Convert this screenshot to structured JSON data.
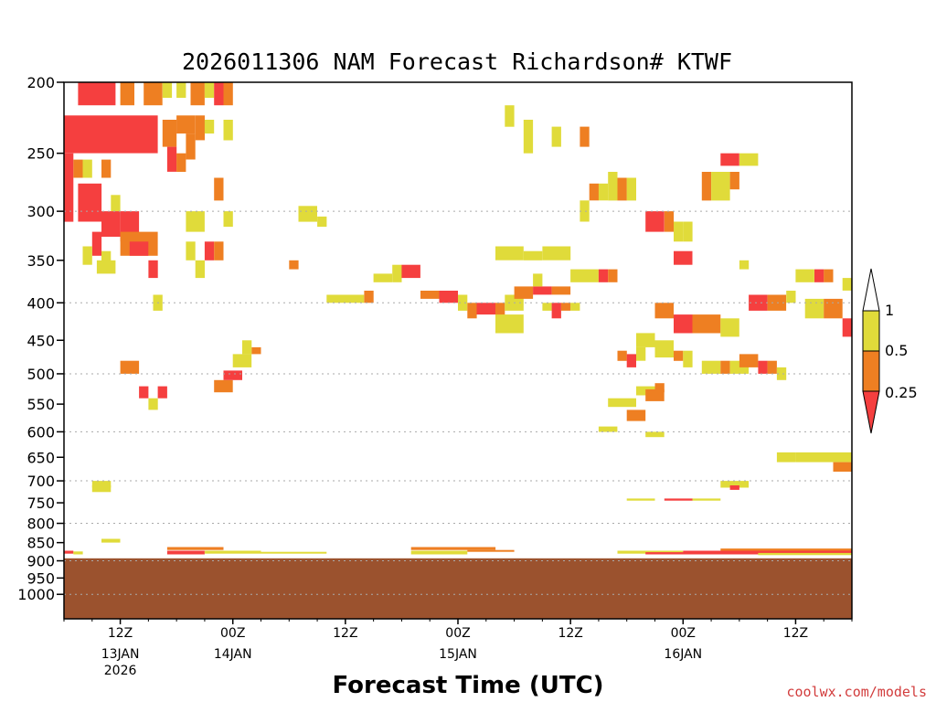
{
  "chart_data": {
    "type": "heatmap",
    "title": "2026011306 NAM Forecast Richardson# KTWF",
    "xlabel": "Forecast Time (UTC)",
    "ylabel": "",
    "credit": "coolwx.com/models",
    "y_scale": "log-pressure",
    "y_range_hpa": [
      200,
      1080
    ],
    "y_ticks": [
      "200",
      "250",
      "300",
      "350",
      "400",
      "450",
      "500",
      "550",
      "600",
      "650",
      "700",
      "750",
      "800",
      "850",
      "900",
      "950",
      "1000"
    ],
    "y_grid_levels": [
      300,
      400,
      500,
      600,
      700,
      800,
      900,
      1000
    ],
    "x_ticks": [
      {
        "hour": 6,
        "label": "12Z",
        "date": "13JAN",
        "year": "2026"
      },
      {
        "hour": 18,
        "label": "00Z",
        "date": "14JAN",
        "year": ""
      },
      {
        "hour": 30,
        "label": "12Z",
        "date": "",
        "year": ""
      },
      {
        "hour": 42,
        "label": "00Z",
        "date": "15JAN",
        "year": ""
      },
      {
        "hour": 54,
        "label": "12Z",
        "date": "",
        "year": ""
      },
      {
        "hour": 66,
        "label": "00Z",
        "date": "16JAN",
        "year": ""
      },
      {
        "hour": 78,
        "label": "12Z",
        "date": "",
        "year": ""
      }
    ],
    "x_range_hours": [
      0,
      84
    ],
    "underground_pressure_hpa": 893,
    "colors": {
      "ri_lt_025": "#f53f3f",
      "ri_025_05": "#ee7f22",
      "ri_05_1": "#e0db3a",
      "ground": "#9b522e"
    },
    "legend": {
      "labels": [
        "1",
        "0.5",
        "0.25"
      ]
    },
    "cells": [
      [
        1.5,
        5.5,
        200,
        215,
        "r"
      ],
      [
        6,
        7.5,
        200,
        215,
        "o"
      ],
      [
        8.5,
        10.5,
        200,
        215,
        "o"
      ],
      [
        10.5,
        11.5,
        200,
        210,
        "y"
      ],
      [
        12,
        13,
        200,
        210,
        "y"
      ],
      [
        13.5,
        15,
        200,
        215,
        "o"
      ],
      [
        15,
        16,
        200,
        210,
        "y"
      ],
      [
        16,
        17,
        200,
        215,
        "r"
      ],
      [
        17,
        18,
        200,
        215,
        "o"
      ],
      [
        0,
        10,
        222,
        250,
        "r"
      ],
      [
        10.5,
        12,
        225,
        245,
        "o"
      ],
      [
        12,
        14,
        222,
        235,
        "o"
      ],
      [
        14,
        15,
        222,
        240,
        "o"
      ],
      [
        13,
        14,
        235,
        255,
        "o"
      ],
      [
        15,
        16,
        225,
        235,
        "y"
      ],
      [
        17,
        18,
        225,
        240,
        "y"
      ],
      [
        11,
        12,
        245,
        265,
        "r"
      ],
      [
        12,
        13,
        250,
        265,
        "o"
      ],
      [
        0,
        1,
        250,
        310,
        "r"
      ],
      [
        1,
        2,
        255,
        270,
        "o"
      ],
      [
        2,
        3,
        255,
        270,
        "y"
      ],
      [
        1.5,
        4,
        275,
        310,
        "r"
      ],
      [
        4,
        5,
        255,
        270,
        "o"
      ],
      [
        5,
        6,
        285,
        300,
        "y"
      ],
      [
        6,
        8,
        300,
        330,
        "r"
      ],
      [
        4,
        6,
        300,
        325,
        "r"
      ],
      [
        3,
        4,
        320,
        345,
        "r"
      ],
      [
        6,
        10,
        320,
        345,
        "o"
      ],
      [
        7,
        9,
        330,
        345,
        "r"
      ],
      [
        2,
        3,
        335,
        355,
        "y"
      ],
      [
        4,
        5,
        340,
        355,
        "y"
      ],
      [
        3.5,
        5.5,
        350,
        365,
        "y"
      ],
      [
        9,
        10,
        350,
        370,
        "r"
      ],
      [
        9.5,
        10.5,
        390,
        410,
        "y"
      ],
      [
        13,
        15,
        300,
        320,
        "y"
      ],
      [
        16,
        17,
        270,
        290,
        "o"
      ],
      [
        17,
        18,
        300,
        315,
        "y"
      ],
      [
        13,
        14,
        330,
        350,
        "y"
      ],
      [
        15,
        16,
        330,
        350,
        "r"
      ],
      [
        16,
        17,
        330,
        350,
        "o"
      ],
      [
        14,
        15,
        350,
        370,
        "y"
      ],
      [
        25,
        27,
        295,
        310,
        "y"
      ],
      [
        27,
        28,
        305,
        315,
        "y"
      ],
      [
        24,
        25,
        350,
        360,
        "o"
      ],
      [
        28,
        32,
        390,
        400,
        "y"
      ],
      [
        32,
        33,
        385,
        400,
        "o"
      ],
      [
        33,
        35,
        365,
        375,
        "y"
      ],
      [
        35,
        36,
        355,
        375,
        "y"
      ],
      [
        36,
        38,
        355,
        370,
        "r"
      ],
      [
        38,
        40,
        385,
        395,
        "o"
      ],
      [
        40,
        42,
        385,
        400,
        "r"
      ],
      [
        42,
        43,
        390,
        410,
        "y"
      ],
      [
        43,
        44,
        400,
        420,
        "o"
      ],
      [
        44,
        46,
        400,
        415,
        "r"
      ],
      [
        46,
        47,
        400,
        420,
        "o"
      ],
      [
        47,
        49,
        390,
        410,
        "y"
      ],
      [
        48,
        50,
        380,
        395,
        "o"
      ],
      [
        50,
        52,
        380,
        390,
        "r"
      ],
      [
        52,
        54,
        380,
        390,
        "o"
      ],
      [
        46,
        49,
        415,
        440,
        "y"
      ],
      [
        51,
        52,
        400,
        410,
        "y"
      ],
      [
        52,
        53,
        400,
        420,
        "r"
      ],
      [
        53,
        54,
        400,
        410,
        "o"
      ],
      [
        54,
        55,
        400,
        410,
        "y"
      ],
      [
        46,
        49,
        335,
        350,
        "y"
      ],
      [
        49,
        51,
        340,
        350,
        "y"
      ],
      [
        51,
        54,
        335,
        350,
        "y"
      ],
      [
        50,
        51,
        365,
        380,
        "y"
      ],
      [
        54,
        57,
        360,
        375,
        "y"
      ],
      [
        57,
        58,
        360,
        375,
        "r"
      ],
      [
        58,
        59,
        360,
        375,
        "o"
      ],
      [
        47,
        48,
        215,
        230,
        "y"
      ],
      [
        49,
        50,
        225,
        250,
        "y"
      ],
      [
        52,
        53,
        230,
        245,
        "y"
      ],
      [
        55,
        56,
        230,
        245,
        "o"
      ],
      [
        55,
        56,
        290,
        310,
        "y"
      ],
      [
        56,
        57,
        275,
        290,
        "o"
      ],
      [
        57,
        58,
        275,
        290,
        "y"
      ],
      [
        58,
        59,
        265,
        290,
        "y"
      ],
      [
        59,
        60,
        270,
        290,
        "o"
      ],
      [
        60,
        61,
        270,
        290,
        "y"
      ],
      [
        62,
        64,
        300,
        320,
        "r"
      ],
      [
        64,
        65,
        300,
        320,
        "o"
      ],
      [
        65,
        66,
        310,
        330,
        "y"
      ],
      [
        66,
        67,
        310,
        330,
        "y"
      ],
      [
        65,
        67,
        340,
        355,
        "r"
      ],
      [
        68,
        69,
        265,
        290,
        "o"
      ],
      [
        69,
        71,
        265,
        290,
        "y"
      ],
      [
        71,
        72,
        265,
        280,
        "o"
      ],
      [
        70,
        72,
        250,
        260,
        "r"
      ],
      [
        72,
        74,
        250,
        260,
        "y"
      ],
      [
        72,
        73,
        350,
        360,
        "y"
      ],
      [
        73,
        75,
        390,
        410,
        "r"
      ],
      [
        75,
        77,
        390,
        410,
        "o"
      ],
      [
        77,
        78,
        385,
        400,
        "y"
      ],
      [
        78,
        80,
        360,
        375,
        "y"
      ],
      [
        80,
        81,
        360,
        375,
        "r"
      ],
      [
        81,
        82,
        360,
        375,
        "o"
      ],
      [
        83,
        84,
        370,
        385,
        "y"
      ],
      [
        79,
        81,
        395,
        420,
        "y"
      ],
      [
        81,
        83,
        395,
        420,
        "o"
      ],
      [
        83,
        84,
        420,
        445,
        "r"
      ],
      [
        63,
        65,
        400,
        420,
        "o"
      ],
      [
        65,
        67,
        415,
        440,
        "r"
      ],
      [
        67,
        70,
        415,
        440,
        "o"
      ],
      [
        70,
        72,
        420,
        445,
        "y"
      ],
      [
        61,
        63,
        440,
        460,
        "y"
      ],
      [
        59,
        60,
        465,
        480,
        "o"
      ],
      [
        60,
        61,
        470,
        490,
        "r"
      ],
      [
        61,
        62,
        460,
        480,
        "y"
      ],
      [
        63,
        65,
        450,
        475,
        "y"
      ],
      [
        65,
        66,
        465,
        480,
        "o"
      ],
      [
        66,
        67,
        465,
        490,
        "y"
      ],
      [
        68,
        70,
        480,
        500,
        "y"
      ],
      [
        70,
        71,
        480,
        500,
        "o"
      ],
      [
        71,
        73,
        480,
        500,
        "y"
      ],
      [
        72,
        74,
        470,
        490,
        "o"
      ],
      [
        74,
        75,
        480,
        500,
        "r"
      ],
      [
        75,
        76,
        480,
        500,
        "o"
      ],
      [
        76,
        77,
        490,
        510,
        "y"
      ],
      [
        61,
        63,
        520,
        535,
        "y"
      ],
      [
        63,
        64,
        515,
        530,
        "o"
      ],
      [
        62,
        64,
        525,
        545,
        "o"
      ],
      [
        58,
        61,
        540,
        555,
        "y"
      ],
      [
        60,
        62,
        560,
        580,
        "o"
      ],
      [
        57,
        59,
        590,
        600,
        "y"
      ],
      [
        62,
        64,
        600,
        610,
        "y"
      ],
      [
        76,
        78,
        640,
        660,
        "y"
      ],
      [
        78,
        84,
        640,
        660,
        "y"
      ],
      [
        82,
        84,
        660,
        680,
        "o"
      ],
      [
        70,
        73,
        700,
        715,
        "y"
      ],
      [
        71,
        72,
        710,
        720,
        "r"
      ],
      [
        60,
        63,
        740,
        745,
        "y"
      ],
      [
        64,
        67,
        740,
        745,
        "r"
      ],
      [
        67,
        70,
        740,
        745,
        "y"
      ],
      [
        3,
        5,
        700,
        715,
        "y"
      ],
      [
        3,
        5,
        710,
        725,
        "y"
      ],
      [
        6,
        8,
        480,
        500,
        "o"
      ],
      [
        8,
        9,
        520,
        540,
        "r"
      ],
      [
        10,
        11,
        520,
        540,
        "r"
      ],
      [
        9,
        10,
        540,
        560,
        "y"
      ],
      [
        16,
        18,
        510,
        530,
        "o"
      ],
      [
        17,
        19,
        495,
        510,
        "r"
      ],
      [
        18,
        20,
        470,
        490,
        "y"
      ],
      [
        20,
        21,
        460,
        470,
        "o"
      ],
      [
        19,
        20,
        450,
        470,
        "y"
      ],
      [
        4,
        6,
        840,
        850,
        "y"
      ],
      [
        11,
        17,
        862,
        870,
        "o"
      ],
      [
        11,
        15,
        872,
        882,
        "r"
      ],
      [
        15,
        21,
        872,
        880,
        "y"
      ],
      [
        21,
        28,
        875,
        880,
        "y"
      ],
      [
        37,
        46,
        862,
        870,
        "o"
      ],
      [
        37,
        43,
        872,
        882,
        "y"
      ],
      [
        43,
        48,
        870,
        875,
        "o"
      ],
      [
        59,
        66,
        872,
        880,
        "y"
      ],
      [
        62,
        68,
        876,
        882,
        "r"
      ],
      [
        66,
        84,
        872,
        882,
        "r"
      ],
      [
        70,
        84,
        866,
        872,
        "o"
      ],
      [
        74,
        84,
        878,
        884,
        "y"
      ],
      [
        0,
        1,
        872,
        880,
        "r"
      ],
      [
        1,
        2,
        874,
        882,
        "y"
      ]
    ]
  }
}
